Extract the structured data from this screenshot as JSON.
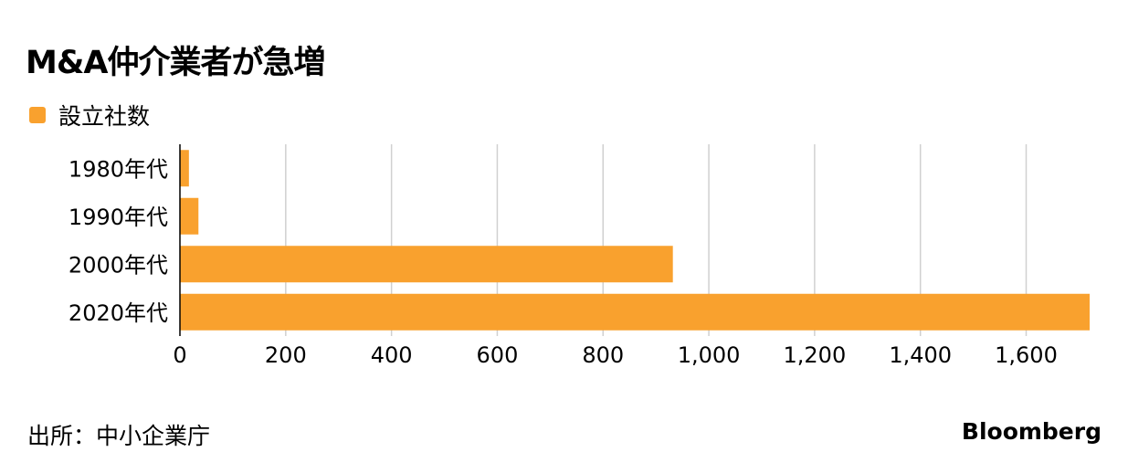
{
  "chart_data": {
    "type": "bar",
    "orientation": "horizontal",
    "title": "M&A仲介業者が急増",
    "categories": [
      "1980年代",
      "1990年代",
      "2000年代",
      "2020年代"
    ],
    "series": [
      {
        "name": "設立社数",
        "values": [
          17,
          35,
          932,
          1720
        ],
        "color": "#f9a12e"
      }
    ],
    "xlim": [
      0,
      1720
    ],
    "xticks": [
      0,
      200,
      400,
      600,
      800,
      1000,
      1200,
      1400,
      1600
    ],
    "xtick_labels": [
      "0",
      "200",
      "400",
      "600",
      "800",
      "1,000",
      "1,200",
      "1,400",
      "1,600"
    ],
    "xlabel": "",
    "ylabel": "",
    "grid": "vertical",
    "legend": "top-left"
  },
  "source": "出所：中小企業庁",
  "brand": "Bloomberg",
  "colors": {
    "bar": "#f9a12e",
    "grid": "#d0d0d0",
    "axis": "#000000",
    "text": "#000000"
  }
}
